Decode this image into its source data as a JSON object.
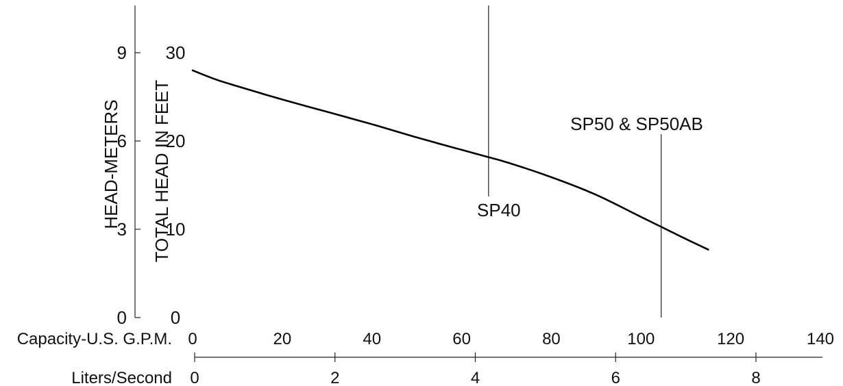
{
  "chart_data": {
    "type": "line",
    "title": "",
    "xlabel": "Capacity-U.S. G.P.M.",
    "ylabel": "TOTAL HEAD IN FEET",
    "x_secondary_label": "Liters/Second",
    "y_secondary_label": "HEAD-METERS",
    "xlim": [
      0,
      140
    ],
    "ylim": [
      0,
      30
    ],
    "x_secondary_lim": [
      0,
      8
    ],
    "y_secondary_lim": [
      0,
      9
    ],
    "x_ticks": [
      "0",
      "20",
      "40",
      "60",
      "80",
      "100",
      "120",
      "140"
    ],
    "x_secondary_ticks": [
      "0",
      "2",
      "4",
      "6",
      "8"
    ],
    "y_ticks": [
      "0",
      "10",
      "20",
      "30"
    ],
    "y_secondary_ticks": [
      "0",
      "3",
      "6",
      "9"
    ],
    "grid": false,
    "series": [
      {
        "x": [
          0,
          5,
          10,
          20,
          30,
          40,
          50,
          60,
          65,
          70,
          80,
          90,
          100,
          110,
          115
        ],
        "y": [
          28,
          27,
          26.2,
          24.7,
          23.3,
          21.9,
          20.4,
          19,
          18.3,
          17.6,
          15.9,
          13.9,
          11.4,
          8.9,
          7.7
        ]
      }
    ],
    "annotations": [
      {
        "text": "SP40",
        "x": 66
      },
      {
        "text": "SP50 & SP50AB",
        "x": 104.5
      }
    ]
  }
}
